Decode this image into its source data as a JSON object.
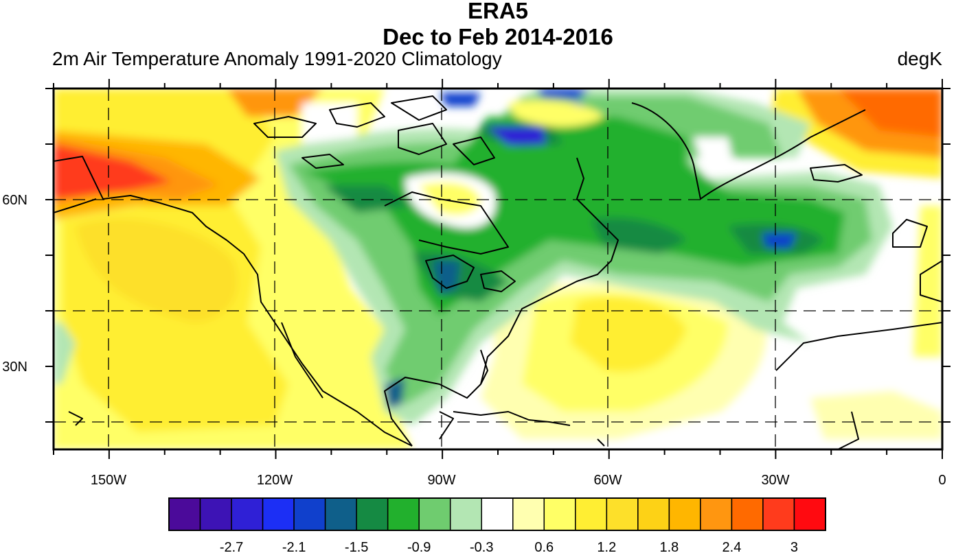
{
  "header": {
    "title": "ERA5",
    "subtitle": "Dec to Feb 2014-2016",
    "left_label": "2m Air Temperature Anomaly  1991-2020 Climatology",
    "right_label": "degK"
  },
  "map": {
    "region": {
      "lon_range": [
        -160,
        0
      ],
      "lat_range": [
        15,
        80
      ]
    },
    "x_tick_labels": [
      "150W",
      "120W",
      "90W",
      "60W",
      "30W",
      "0"
    ],
    "y_tick_labels": [
      "60N",
      "30N"
    ],
    "grid_lines": "dashed every 30 degrees longitude and 10 degrees latitude",
    "regions_described": [
      {
        "area": "Alaska / Bering",
        "anomaly": "+2.4 to +3"
      },
      {
        "area": "NE Greenland / Svalbard",
        "anomaly": "+1.8 to +2.7"
      },
      {
        "area": "Western US / NE Pacific",
        "anomaly": "+0.6 to +1.5"
      },
      {
        "area": "Subtropical W Atlantic",
        "anomaly": "+0.6 to +1.2"
      },
      {
        "area": "Hudson Bay / Canadian Archipelago",
        "anomaly": "-0.6 to -2.1"
      },
      {
        "area": "Great Lakes",
        "anomaly": "-0.9 to -1.8"
      },
      {
        "area": "Labrador Sea / N Atlantic",
        "anomaly": "-0.6 to -1.8"
      }
    ]
  },
  "colorbar": {
    "levels": [
      "-3",
      "-2.7",
      "-2.4",
      "-2.1",
      "-1.8",
      "-1.5",
      "-1.2",
      "-0.9",
      "-0.6",
      "-0.3",
      "0.3",
      "0.6",
      "0.9",
      "1.2",
      "1.5",
      "1.8",
      "2.1",
      "2.4",
      "2.7",
      "3"
    ],
    "tick_labels": [
      "-2.7",
      "-2.1",
      "-1.5",
      "-0.9",
      "-0.3",
      "0.6",
      "1.2",
      "1.8",
      "2.4",
      "3"
    ],
    "colors": [
      "#4b0a9a",
      "#3d13b5",
      "#2f20d6",
      "#1c2ff5",
      "#1040cc",
      "#0f5f8a",
      "#158a43",
      "#22b02d",
      "#6fcc6f",
      "#b3e6b3",
      "#ffffff",
      "#ffffb0",
      "#ffff66",
      "#ffee33",
      "#fde02a",
      "#fdd216",
      "#ffb600",
      "#ff9610",
      "#ff6a00",
      "#ff3b1c",
      "#ff0a10"
    ]
  }
}
